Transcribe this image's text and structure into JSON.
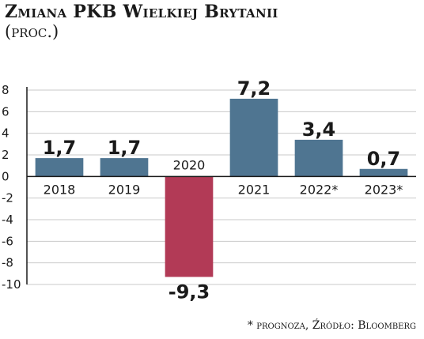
{
  "title": "Zmiana PKB Wielkiej Brytanii",
  "subtitle": "(proc.)",
  "source": "* prognoza, Źródło: Bloomberg",
  "colors": {
    "positive": "#4f7591",
    "negative": "#b23a56",
    "grid": "#c9c9c9",
    "axis": "#1a1a1a"
  },
  "chart_data": {
    "type": "bar",
    "title": "Zmiana PKB Wielkiej Brytanii",
    "subtitle": "(proc.)",
    "categories": [
      "2018",
      "2019",
      "2020",
      "2021",
      "2022*",
      "2023*"
    ],
    "values": [
      1.7,
      1.7,
      -9.3,
      7.2,
      3.4,
      0.7
    ],
    "value_labels": [
      "1,7",
      "1,7",
      "-9,3",
      "7,2",
      "3,4",
      "0,7"
    ],
    "ylim": [
      -10,
      8
    ],
    "yticks": [
      8,
      6,
      4,
      2,
      0,
      -2,
      -4,
      -6,
      -8,
      -10
    ],
    "ytick_labels": [
      "8",
      "6",
      "4",
      "2",
      "0",
      "-2",
      "-4",
      "-6",
      "-8",
      "-10"
    ],
    "grid": true,
    "legend": "none"
  }
}
